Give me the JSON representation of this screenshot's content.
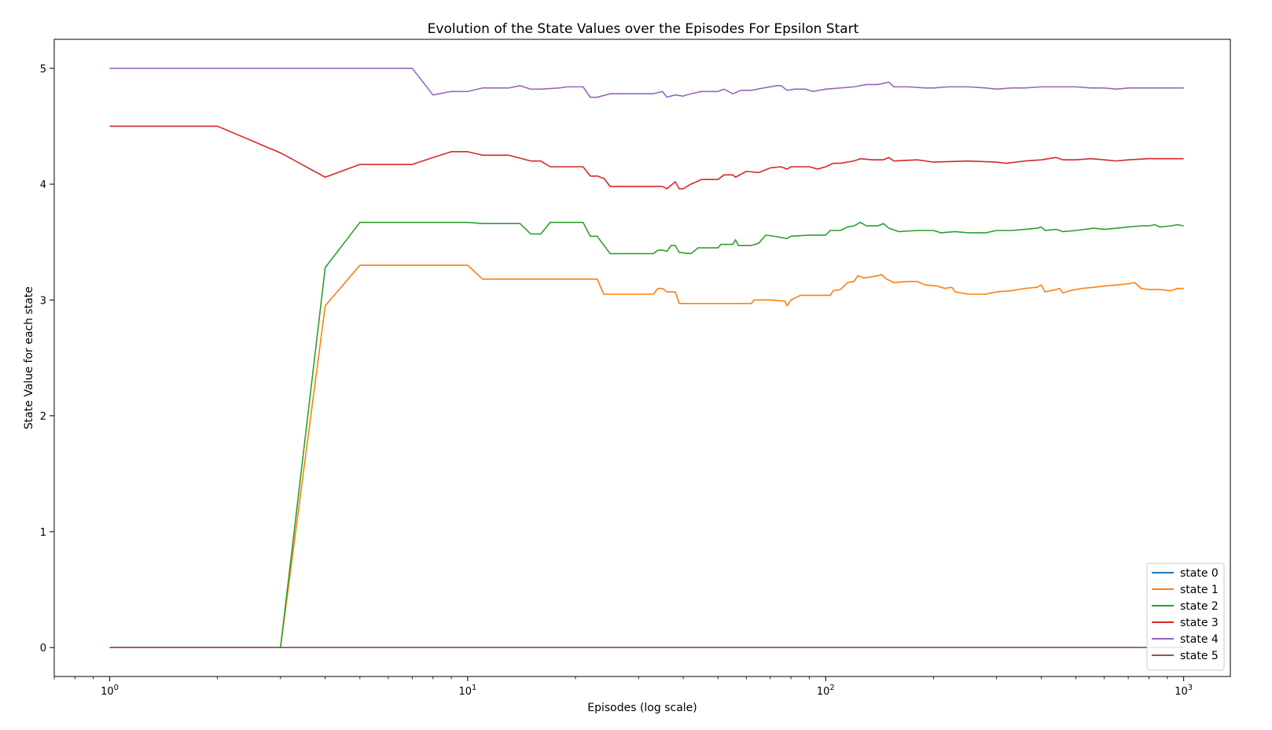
{
  "chart_data": {
    "type": "line",
    "title": "Evolution of the State Values over the Episodes For Epsilon Start",
    "xlabel": "Episodes (log scale)",
    "ylabel": "State Value for each state",
    "xscale": "log",
    "xlim": [
      0.7,
      1350
    ],
    "ylim": [
      -0.25,
      5.25
    ],
    "xticks": [
      {
        "value": 1,
        "base": "10",
        "exp": "0"
      },
      {
        "value": 10,
        "base": "10",
        "exp": "1"
      },
      {
        "value": 100,
        "base": "10",
        "exp": "2"
      },
      {
        "value": 1000,
        "base": "10",
        "exp": "3"
      }
    ],
    "yticks": [
      0,
      1,
      2,
      3,
      4,
      5
    ],
    "grid": false,
    "legend_position": "lower-right",
    "series": [
      {
        "name": "state 0",
        "color": "#1f77b4",
        "points": [
          [
            1,
            0
          ],
          [
            1000,
            0
          ]
        ]
      },
      {
        "name": "state 1",
        "color": "#ff7f0e",
        "points": [
          [
            1,
            0
          ],
          [
            3,
            0
          ],
          [
            4,
            2.95
          ],
          [
            5,
            3.3
          ],
          [
            7,
            3.3
          ],
          [
            10,
            3.3
          ],
          [
            11,
            3.18
          ],
          [
            15,
            3.18
          ],
          [
            20,
            3.18
          ],
          [
            23,
            3.18
          ],
          [
            24,
            3.05
          ],
          [
            30,
            3.05
          ],
          [
            33,
            3.05
          ],
          [
            34,
            3.1
          ],
          [
            35,
            3.1
          ],
          [
            36,
            3.07
          ],
          [
            38,
            3.07
          ],
          [
            39,
            2.97
          ],
          [
            45,
            2.97
          ],
          [
            55,
            2.97
          ],
          [
            62,
            2.97
          ],
          [
            63,
            3.0
          ],
          [
            70,
            3.0
          ],
          [
            77,
            2.99
          ],
          [
            78,
            2.95
          ],
          [
            80,
            3.0
          ],
          [
            85,
            3.04
          ],
          [
            95,
            3.04
          ],
          [
            103,
            3.04
          ],
          [
            105,
            3.08
          ],
          [
            110,
            3.09
          ],
          [
            115,
            3.15
          ],
          [
            120,
            3.16
          ],
          [
            123,
            3.21
          ],
          [
            128,
            3.19
          ],
          [
            140,
            3.21
          ],
          [
            143,
            3.22
          ],
          [
            148,
            3.18
          ],
          [
            155,
            3.15
          ],
          [
            170,
            3.16
          ],
          [
            180,
            3.16
          ],
          [
            190,
            3.13
          ],
          [
            205,
            3.12
          ],
          [
            215,
            3.1
          ],
          [
            225,
            3.11
          ],
          [
            230,
            3.07
          ],
          [
            250,
            3.05
          ],
          [
            280,
            3.05
          ],
          [
            300,
            3.07
          ],
          [
            330,
            3.08
          ],
          [
            360,
            3.1
          ],
          [
            390,
            3.11
          ],
          [
            400,
            3.13
          ],
          [
            410,
            3.07
          ],
          [
            440,
            3.09
          ],
          [
            450,
            3.1
          ],
          [
            460,
            3.06
          ],
          [
            480,
            3.08
          ],
          [
            520,
            3.1
          ],
          [
            560,
            3.11
          ],
          [
            600,
            3.12
          ],
          [
            650,
            3.13
          ],
          [
            700,
            3.14
          ],
          [
            730,
            3.15
          ],
          [
            760,
            3.1
          ],
          [
            800,
            3.09
          ],
          [
            860,
            3.09
          ],
          [
            920,
            3.08
          ],
          [
            960,
            3.1
          ],
          [
            1000,
            3.1
          ]
        ]
      },
      {
        "name": "state 2",
        "color": "#2ca02c",
        "points": [
          [
            1,
            0
          ],
          [
            3,
            0
          ],
          [
            4,
            3.28
          ],
          [
            5,
            3.67
          ],
          [
            7,
            3.67
          ],
          [
            10,
            3.67
          ],
          [
            11,
            3.66
          ],
          [
            14,
            3.66
          ],
          [
            15,
            3.57
          ],
          [
            16,
            3.57
          ],
          [
            17,
            3.67
          ],
          [
            21,
            3.67
          ],
          [
            22,
            3.55
          ],
          [
            23,
            3.55
          ],
          [
            25,
            3.4
          ],
          [
            30,
            3.4
          ],
          [
            33,
            3.4
          ],
          [
            34,
            3.43
          ],
          [
            35,
            3.43
          ],
          [
            36,
            3.42
          ],
          [
            37,
            3.47
          ],
          [
            38,
            3.47
          ],
          [
            39,
            3.41
          ],
          [
            42,
            3.4
          ],
          [
            44,
            3.45
          ],
          [
            50,
            3.45
          ],
          [
            51,
            3.48
          ],
          [
            55,
            3.48
          ],
          [
            56,
            3.52
          ],
          [
            57,
            3.47
          ],
          [
            62,
            3.47
          ],
          [
            65,
            3.49
          ],
          [
            68,
            3.56
          ],
          [
            72,
            3.55
          ],
          [
            78,
            3.53
          ],
          [
            80,
            3.55
          ],
          [
            90,
            3.56
          ],
          [
            100,
            3.56
          ],
          [
            103,
            3.6
          ],
          [
            110,
            3.6
          ],
          [
            115,
            3.63
          ],
          [
            120,
            3.64
          ],
          [
            125,
            3.67
          ],
          [
            130,
            3.64
          ],
          [
            140,
            3.64
          ],
          [
            145,
            3.66
          ],
          [
            150,
            3.62
          ],
          [
            160,
            3.59
          ],
          [
            180,
            3.6
          ],
          [
            200,
            3.6
          ],
          [
            210,
            3.58
          ],
          [
            230,
            3.59
          ],
          [
            250,
            3.58
          ],
          [
            280,
            3.58
          ],
          [
            300,
            3.6
          ],
          [
            330,
            3.6
          ],
          [
            360,
            3.61
          ],
          [
            390,
            3.62
          ],
          [
            400,
            3.63
          ],
          [
            410,
            3.6
          ],
          [
            440,
            3.61
          ],
          [
            460,
            3.59
          ],
          [
            500,
            3.6
          ],
          [
            560,
            3.62
          ],
          [
            600,
            3.61
          ],
          [
            650,
            3.62
          ],
          [
            700,
            3.63
          ],
          [
            760,
            3.64
          ],
          [
            800,
            3.64
          ],
          [
            830,
            3.65
          ],
          [
            860,
            3.63
          ],
          [
            920,
            3.64
          ],
          [
            960,
            3.65
          ],
          [
            1000,
            3.64
          ]
        ]
      },
      {
        "name": "state 3",
        "color": "#d62728",
        "points": [
          [
            1,
            4.5
          ],
          [
            2,
            4.5
          ],
          [
            3,
            4.27
          ],
          [
            4,
            4.06
          ],
          [
            5,
            4.17
          ],
          [
            7,
            4.17
          ],
          [
            8,
            4.23
          ],
          [
            9,
            4.28
          ],
          [
            10,
            4.28
          ],
          [
            11,
            4.25
          ],
          [
            13,
            4.25
          ],
          [
            15,
            4.2
          ],
          [
            16,
            4.2
          ],
          [
            17,
            4.15
          ],
          [
            21,
            4.15
          ],
          [
            22,
            4.07
          ],
          [
            23,
            4.07
          ],
          [
            24,
            4.05
          ],
          [
            25,
            3.98
          ],
          [
            30,
            3.98
          ],
          [
            33,
            3.98
          ],
          [
            35,
            3.98
          ],
          [
            36,
            3.96
          ],
          [
            38,
            4.02
          ],
          [
            39,
            3.96
          ],
          [
            40,
            3.96
          ],
          [
            42,
            4.0
          ],
          [
            45,
            4.04
          ],
          [
            50,
            4.04
          ],
          [
            52,
            4.08
          ],
          [
            55,
            4.08
          ],
          [
            56,
            4.06
          ],
          [
            60,
            4.11
          ],
          [
            65,
            4.1
          ],
          [
            70,
            4.14
          ],
          [
            75,
            4.15
          ],
          [
            78,
            4.13
          ],
          [
            80,
            4.15
          ],
          [
            90,
            4.15
          ],
          [
            95,
            4.13
          ],
          [
            100,
            4.15
          ],
          [
            105,
            4.18
          ],
          [
            110,
            4.18
          ],
          [
            120,
            4.2
          ],
          [
            125,
            4.22
          ],
          [
            135,
            4.21
          ],
          [
            145,
            4.21
          ],
          [
            150,
            4.23
          ],
          [
            155,
            4.2
          ],
          [
            180,
            4.21
          ],
          [
            190,
            4.2
          ],
          [
            200,
            4.19
          ],
          [
            250,
            4.2
          ],
          [
            300,
            4.19
          ],
          [
            320,
            4.18
          ],
          [
            360,
            4.2
          ],
          [
            400,
            4.21
          ],
          [
            440,
            4.23
          ],
          [
            460,
            4.21
          ],
          [
            500,
            4.21
          ],
          [
            550,
            4.22
          ],
          [
            600,
            4.21
          ],
          [
            650,
            4.2
          ],
          [
            700,
            4.21
          ],
          [
            800,
            4.22
          ],
          [
            900,
            4.22
          ],
          [
            1000,
            4.22
          ]
        ]
      },
      {
        "name": "state 4",
        "color": "#9467bd",
        "points": [
          [
            1,
            5
          ],
          [
            3,
            5
          ],
          [
            7,
            5
          ],
          [
            8,
            4.77
          ],
          [
            9,
            4.8
          ],
          [
            10,
            4.8
          ],
          [
            11,
            4.83
          ],
          [
            13,
            4.83
          ],
          [
            14,
            4.85
          ],
          [
            15,
            4.82
          ],
          [
            16,
            4.82
          ],
          [
            18,
            4.83
          ],
          [
            19,
            4.84
          ],
          [
            21,
            4.84
          ],
          [
            22,
            4.75
          ],
          [
            23,
            4.75
          ],
          [
            25,
            4.78
          ],
          [
            33,
            4.78
          ],
          [
            35,
            4.8
          ],
          [
            36,
            4.75
          ],
          [
            38,
            4.77
          ],
          [
            40,
            4.76
          ],
          [
            42,
            4.78
          ],
          [
            45,
            4.8
          ],
          [
            50,
            4.8
          ],
          [
            52,
            4.82
          ],
          [
            55,
            4.78
          ],
          [
            58,
            4.81
          ],
          [
            62,
            4.81
          ],
          [
            67,
            4.83
          ],
          [
            73,
            4.85
          ],
          [
            75,
            4.85
          ],
          [
            78,
            4.81
          ],
          [
            82,
            4.82
          ],
          [
            88,
            4.82
          ],
          [
            92,
            4.8
          ],
          [
            100,
            4.82
          ],
          [
            110,
            4.83
          ],
          [
            120,
            4.84
          ],
          [
            130,
            4.86
          ],
          [
            140,
            4.86
          ],
          [
            150,
            4.88
          ],
          [
            155,
            4.84
          ],
          [
            170,
            4.84
          ],
          [
            190,
            4.83
          ],
          [
            200,
            4.83
          ],
          [
            220,
            4.84
          ],
          [
            250,
            4.84
          ],
          [
            280,
            4.83
          ],
          [
            300,
            4.82
          ],
          [
            330,
            4.83
          ],
          [
            360,
            4.83
          ],
          [
            400,
            4.84
          ],
          [
            450,
            4.84
          ],
          [
            500,
            4.84
          ],
          [
            550,
            4.83
          ],
          [
            600,
            4.83
          ],
          [
            650,
            4.82
          ],
          [
            700,
            4.83
          ],
          [
            800,
            4.83
          ],
          [
            900,
            4.83
          ],
          [
            1000,
            4.83
          ]
        ]
      },
      {
        "name": "state 5",
        "color": "#8c564b",
        "points": [
          [
            1,
            0
          ],
          [
            1000,
            0
          ]
        ]
      }
    ]
  }
}
